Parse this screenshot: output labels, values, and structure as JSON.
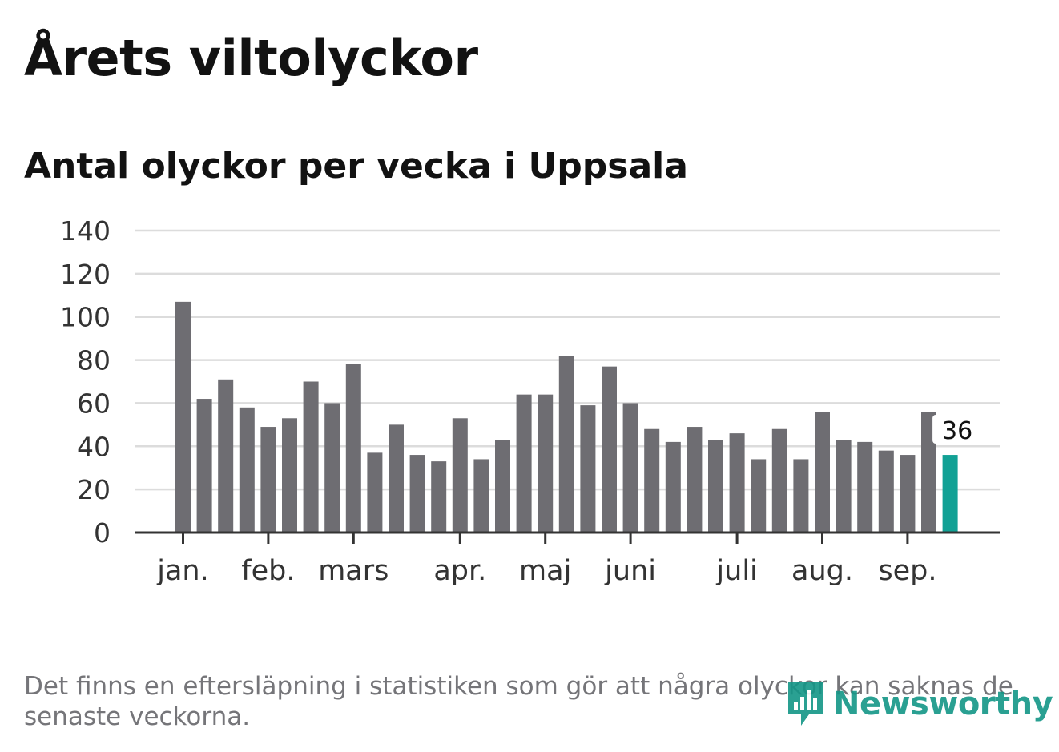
{
  "title": "Årets viltolyckor",
  "subtitle": "Antal olyckor per vecka i Uppsala",
  "footnote": "Det finns en eftersläpning i statistiken som gör att några olyckor kan saknas de senaste veckorna.",
  "logo_text": "Newsworthy",
  "colors": {
    "bar": "#6e6d72",
    "highlight": "#12a195",
    "grid": "#dcdcdc",
    "axis": "#333333",
    "logo": "#149687"
  },
  "chart_data": {
    "type": "bar",
    "ylim": [
      0,
      140
    ],
    "yticks": [
      0,
      20,
      40,
      60,
      80,
      100,
      120,
      140
    ],
    "grid": true,
    "month_labels": [
      {
        "label": "jan.",
        "week_index": 0
      },
      {
        "label": "feb.",
        "week_index": 4
      },
      {
        "label": "mars",
        "week_index": 8
      },
      {
        "label": "apr.",
        "week_index": 13
      },
      {
        "label": "maj",
        "week_index": 17
      },
      {
        "label": "juni",
        "week_index": 21
      },
      {
        "label": "juli",
        "week_index": 26
      },
      {
        "label": "aug.",
        "week_index": 30
      },
      {
        "label": "sep.",
        "week_index": 34
      }
    ],
    "values": [
      107,
      62,
      71,
      58,
      49,
      53,
      70,
      60,
      78,
      37,
      50,
      36,
      33,
      53,
      34,
      43,
      64,
      64,
      82,
      59,
      77,
      60,
      48,
      42,
      49,
      43,
      46,
      34,
      48,
      34,
      56,
      43,
      42,
      38,
      36,
      56,
      36
    ],
    "highlight_index": 36,
    "highlight_label": "36"
  }
}
